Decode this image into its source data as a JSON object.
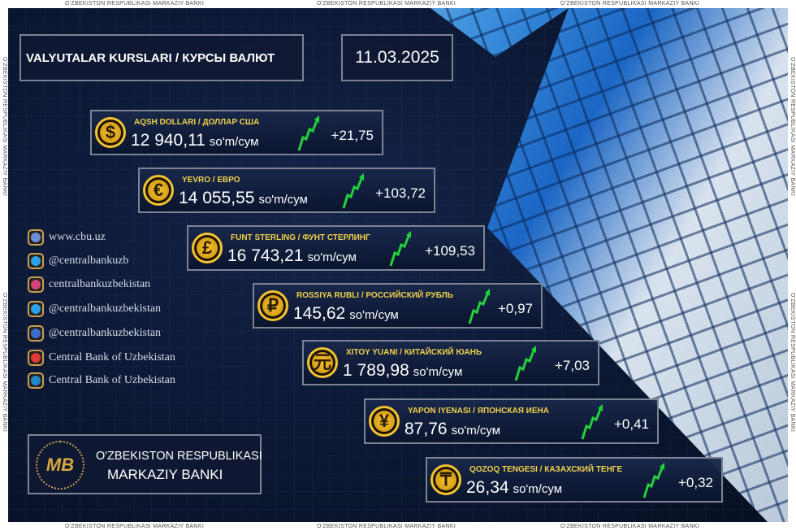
{
  "watermark": "O'ZBEKISTON RESPUBLIKASI MARKAZIY BANKI",
  "header": {
    "title": "VALYUTALAR KURSLARI / КУРСЫ ВАЛЮТ",
    "date": "11.03.2025"
  },
  "unit": "so'm/сум",
  "currencies": [
    {
      "name": "AQSH DOLLARI / ДОЛЛАР США",
      "symbol": "$",
      "rate": "12 940,11",
      "change": "+21,75",
      "icon": "dollar-coin-icon"
    },
    {
      "name": "YEVRO / ЕВРО",
      "symbol": "€",
      "rate": "14 055,55",
      "change": "+103,72",
      "icon": "euro-coin-icon"
    },
    {
      "name": "FUNT STERLING / ФУНТ СТЕРЛИНГ",
      "symbol": "£",
      "rate": "16 743,21",
      "change": "+109,53",
      "icon": "pound-coin-icon"
    },
    {
      "name": "ROSSIYA RUBLI / РОССИЙСКИЙ РУБЛЬ",
      "symbol": "₽",
      "rate": "145,62",
      "change": "+0,97",
      "icon": "ruble-coin-icon"
    },
    {
      "name": "XITOY YUANI / КИТАЙСКИЙ ЮАНЬ",
      "symbol": "元",
      "rate": "1 789,98",
      "change": "+7,03",
      "icon": "yuan-coin-icon"
    },
    {
      "name": "YAPON IYENASI / ЯПОНСКАЯ ИЕНА",
      "symbol": "¥",
      "rate": "87,76",
      "change": "+0,41",
      "icon": "yen-coin-icon"
    },
    {
      "name": "QOZOQ TENGESI / КАЗАХСКИЙ ТЕНГЕ",
      "symbol": "₸",
      "rate": "26,34",
      "change": "+0,32",
      "icon": "tenge-coin-icon"
    }
  ],
  "socials": [
    {
      "text": "www.cbu.uz",
      "icon": "website-icon",
      "color": "#6a8fd8"
    },
    {
      "text": "@centralbankuzb",
      "icon": "twitter-icon",
      "color": "#2aa3e6"
    },
    {
      "text": "centralbankuzbekistan",
      "icon": "instagram-icon",
      "color": "#d6457a"
    },
    {
      "text": "@centralbankuzbekistan",
      "icon": "telegram-icon",
      "color": "#2aa3e6"
    },
    {
      "text": "@centralbankuzbekistan",
      "icon": "facebook-icon",
      "color": "#3b6cc9"
    },
    {
      "text": "Central Bank of Uzbekistan",
      "icon": "youtube-icon",
      "color": "#e53935"
    },
    {
      "text": "Central Bank of Uzbekistan",
      "icon": "linkedin-icon",
      "color": "#1f88c9"
    }
  ],
  "bank": {
    "line1": "O'ZBEKISTON RESPUBLIKASI",
    "line2": "MARKAZIY BANKI"
  },
  "colors": {
    "background": "#0b1630",
    "accent_gold": "#f0d24a",
    "up_arrow": "#22d13a"
  }
}
